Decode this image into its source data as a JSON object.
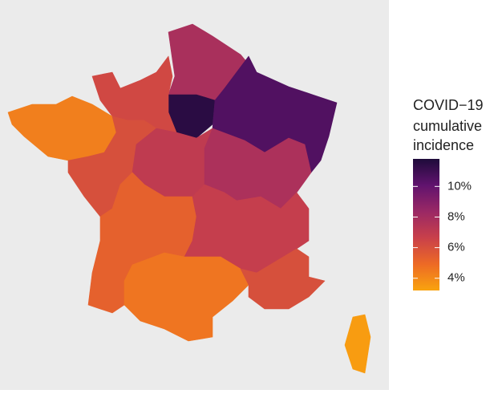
{
  "chart_data": {
    "type": "choropleth",
    "legend_title": [
      "COVID−19",
      "cumulative",
      "incidence"
    ],
    "values": [
      7.8,
      11.5,
      10.5,
      6.3,
      4.3,
      6.0,
      7.0,
      7.7,
      5.3,
      6.8,
      4.6,
      6.0,
      3.4
    ],
    "colorlim": [
      3.2,
      11.8
    ],
    "colorticks": [
      {
        "value": 4,
        "label": "4%"
      },
      {
        "value": 6,
        "label": "6%"
      },
      {
        "value": 8,
        "label": "8%"
      },
      {
        "value": 10,
        "label": "10%"
      }
    ],
    "colors": [
      "#f9a30e",
      "#ed6a25",
      "#c9404a",
      "#9a2865",
      "#61136e",
      "#1e0b3a"
    ]
  }
}
